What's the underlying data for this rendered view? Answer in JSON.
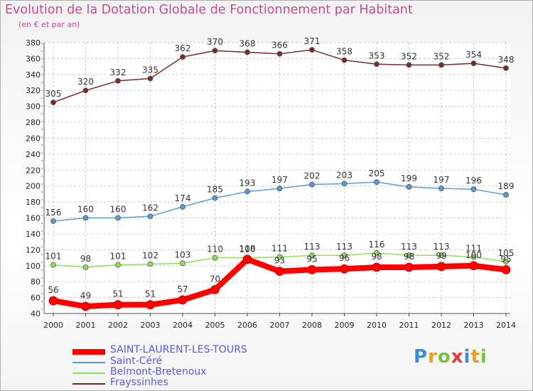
{
  "chart_data": {
    "type": "line",
    "title": "Evolution de la Dotation Globale de Fonctionnement par Habitant",
    "subtitle": "(en € et par an)",
    "x": [
      "2000",
      "2001",
      "2002",
      "2003",
      "2004",
      "2005",
      "2006",
      "2007",
      "2008",
      "2009",
      "2010",
      "2011",
      "2012",
      "2013",
      "2014"
    ],
    "ylim": [
      40,
      380
    ],
    "yticks": [
      40,
      60,
      80,
      100,
      120,
      140,
      160,
      180,
      200,
      220,
      240,
      260,
      280,
      300,
      320,
      340,
      360,
      380
    ],
    "series": [
      {
        "name": "Frayssinhes",
        "color": "#7a2a2a",
        "values": [
          305,
          320,
          332,
          335,
          362,
          370,
          368,
          366,
          371,
          358,
          353,
          352,
          352,
          354,
          348
        ]
      },
      {
        "name": "Saint-Céré",
        "color": "#5b9bd5",
        "values": [
          156,
          160,
          160,
          162,
          174,
          185,
          193,
          197,
          202,
          203,
          205,
          199,
          197,
          196,
          189
        ]
      },
      {
        "name": "Belmont-Bretenoux",
        "color": "#8ee05a",
        "values": [
          101,
          98,
          101,
          102,
          103,
          110,
          110,
          111,
          113,
          113,
          116,
          113,
          113,
          111,
          105
        ]
      },
      {
        "name": "SAINT-LAURENT-LES-TOURS",
        "color": "#ff0000",
        "values": [
          56,
          49,
          51,
          51,
          57,
          70,
          108,
          93,
          95,
          96,
          98,
          98,
          99,
          100,
          95
        ]
      }
    ]
  },
  "legend": [
    "SAINT-LAURENT-LES-TOURS",
    "Saint-Céré",
    "Belmont-Bretenoux",
    "Frayssinhes"
  ],
  "logo": {
    "text": "Proxiti",
    "letters": [
      "P",
      "r",
      "o",
      "x",
      "i",
      "t",
      "i"
    ]
  }
}
